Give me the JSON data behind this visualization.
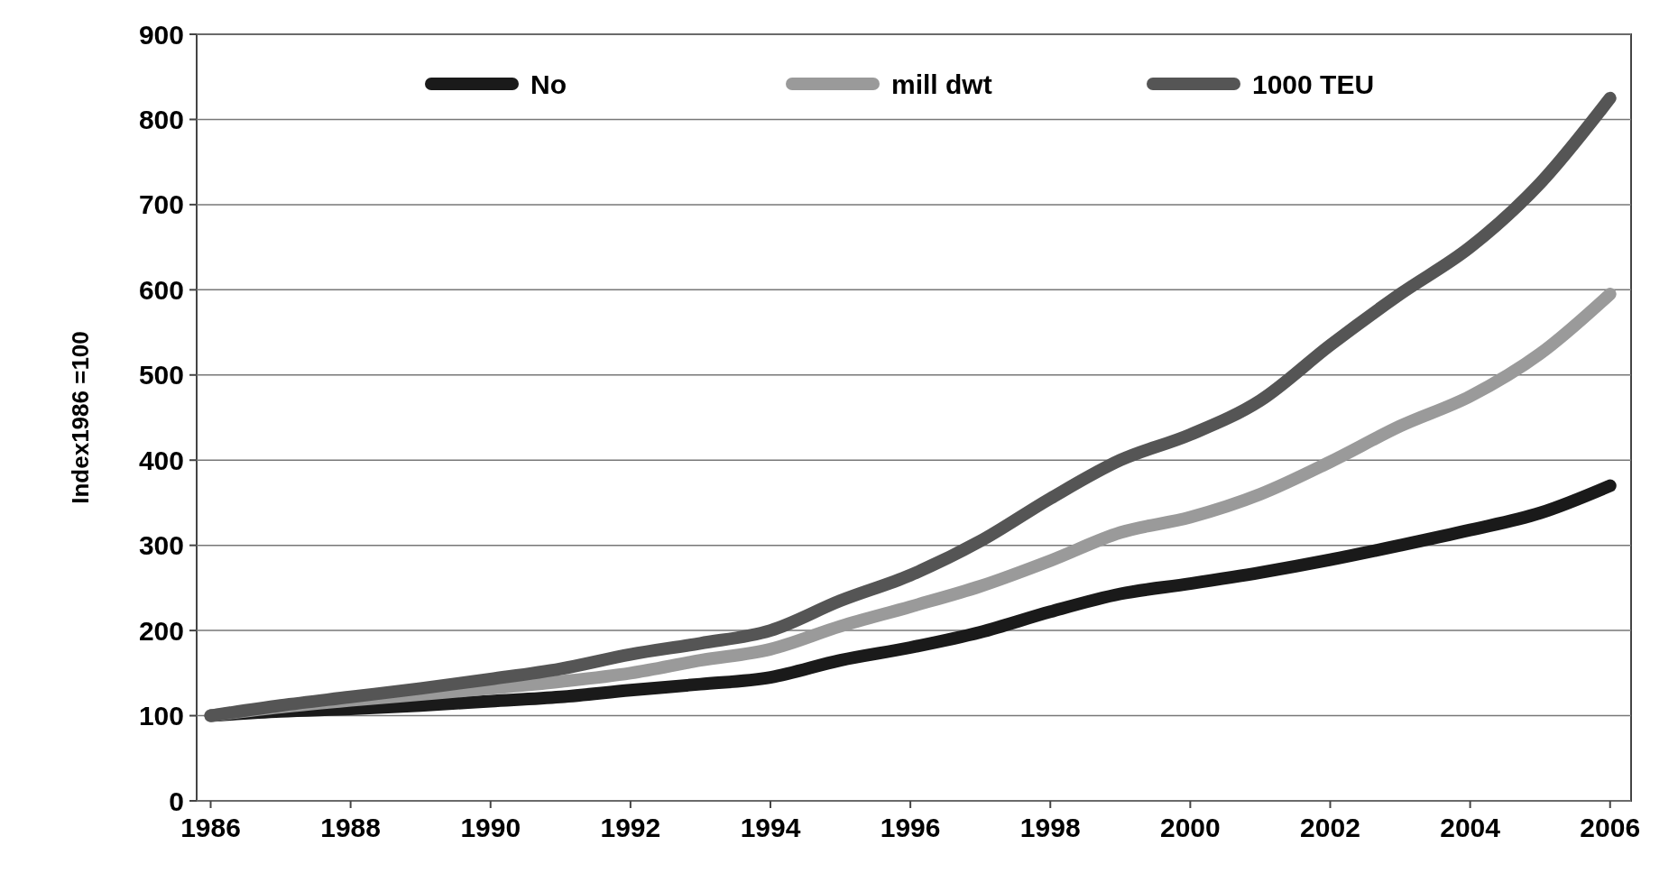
{
  "chart_data": {
    "type": "line",
    "ylabel": "Index1986 =100",
    "x": [
      1986,
      1987,
      1988,
      1989,
      1990,
      1991,
      1992,
      1993,
      1994,
      1995,
      1996,
      1997,
      1998,
      1999,
      2000,
      2001,
      2002,
      2003,
      2004,
      2005,
      2006
    ],
    "series": [
      {
        "name": "No",
        "color": "#1a1a1a",
        "values": [
          100,
          105,
          108,
          112,
          117,
          122,
          130,
          137,
          145,
          165,
          180,
          198,
          222,
          243,
          255,
          268,
          283,
          300,
          318,
          338,
          370
        ]
      },
      {
        "name": "mill dwt",
        "color": "#9a9a9a",
        "values": [
          100,
          110,
          118,
          125,
          132,
          140,
          150,
          165,
          178,
          205,
          228,
          252,
          282,
          315,
          333,
          360,
          398,
          440,
          475,
          525,
          595
        ]
      },
      {
        "name": "1000 TEU",
        "color": "#555555",
        "values": [
          100,
          112,
          122,
          132,
          143,
          155,
          172,
          185,
          200,
          235,
          265,
          305,
          355,
          400,
          430,
          470,
          535,
          595,
          650,
          725,
          825
        ]
      }
    ],
    "xlim": [
      1985.8,
      2006.3
    ],
    "xticks": [
      1986,
      1988,
      1990,
      1992,
      1994,
      1996,
      1998,
      2000,
      2002,
      2004,
      2006
    ],
    "ylim": [
      0,
      900
    ],
    "yticks": [
      0,
      100,
      200,
      300,
      400,
      500,
      600,
      700,
      800,
      900
    ],
    "grid": "y",
    "legend": "top",
    "line_style": "solid",
    "marker": "none"
  }
}
